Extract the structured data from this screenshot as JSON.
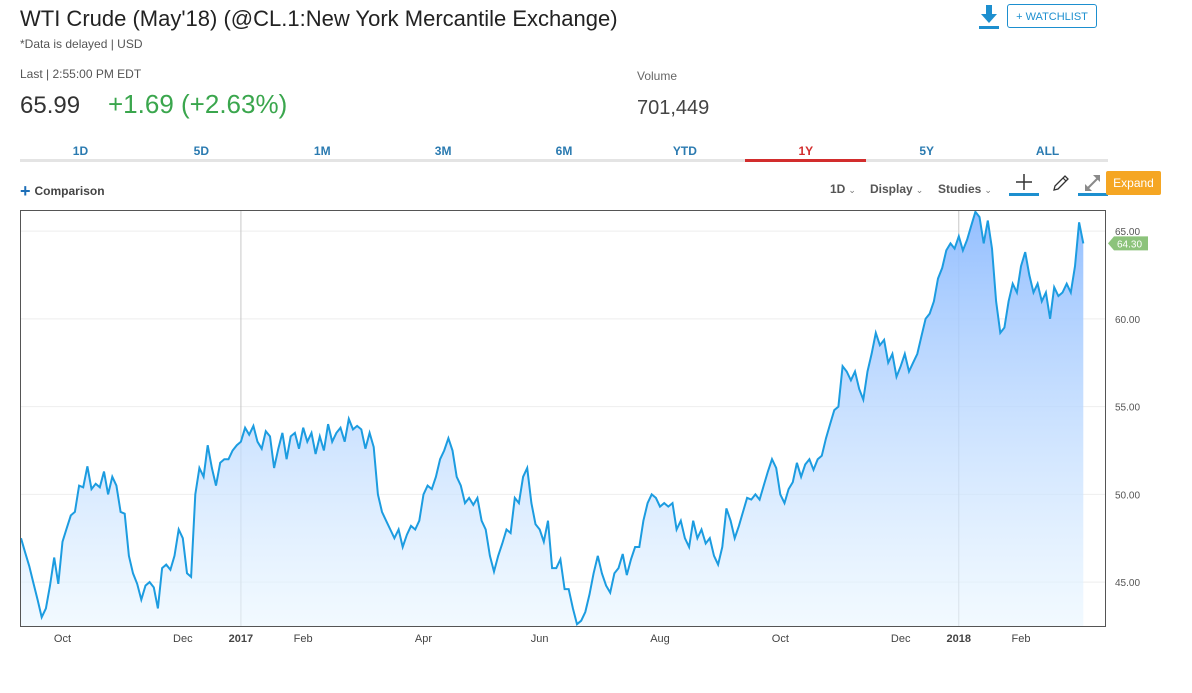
{
  "header": {
    "title": "WTI Crude (May'18) (@CL.1:New York Mercantile Exchange)",
    "subtitle": "*Data is delayed | USD",
    "watchlist_label": "+ WATCHLIST"
  },
  "quote": {
    "last_label": "Last | 2:55:00 PM EDT",
    "last_price": "65.99",
    "change": "+1.69 (+2.63%)",
    "volume_label": "Volume",
    "volume_value": "701,449"
  },
  "tabs": [
    "1D",
    "5D",
    "1M",
    "3M",
    "6M",
    "YTD",
    "1Y",
    "5Y",
    "ALL"
  ],
  "active_tab": "1Y",
  "toolbar": {
    "comparison_label": "Comparison",
    "interval_label": "1D",
    "display_label": "Display",
    "studies_label": "Studies",
    "expand_label": "Expand"
  },
  "colors": {
    "accent": "#1d8fcf",
    "line": "#1c9ce0",
    "positive": "#3aa64d",
    "active_tab": "#d22d2d",
    "expand": "#f5a623",
    "last_badge": "#8cc37b"
  },
  "chart_data": {
    "type": "area",
    "title": "WTI Crude (May'18) 1Y",
    "ylim": [
      42.5,
      66.2
    ],
    "yticks": [
      "45.00",
      "50.00",
      "55.00",
      "60.00",
      "65.00"
    ],
    "yticks_values": [
      45,
      50,
      55,
      60,
      65
    ],
    "xtick_labels": [
      "Oct",
      "Dec",
      "2017",
      "Feb",
      "Apr",
      "Jun",
      "Aug",
      "Oct",
      "Dec",
      "2018",
      "Feb"
    ],
    "xtick_positions": [
      10,
      39,
      53,
      68,
      97,
      125,
      154,
      183,
      212,
      226,
      241
    ],
    "x_count": 262,
    "last_value_label": "64.30",
    "last_value": 64.3,
    "anchors": [
      [
        0,
        47.5
      ],
      [
        2,
        45.9
      ],
      [
        4,
        44.0
      ],
      [
        5,
        43.0
      ],
      [
        6,
        43.5
      ],
      [
        7,
        44.8
      ],
      [
        8,
        46.4
      ],
      [
        9,
        44.9
      ],
      [
        10,
        47.3
      ],
      [
        12,
        48.8
      ],
      [
        13,
        49.0
      ],
      [
        14,
        50.5
      ],
      [
        15,
        50.4
      ],
      [
        16,
        51.6
      ],
      [
        17,
        50.3
      ],
      [
        18,
        50.6
      ],
      [
        19,
        50.4
      ],
      [
        20,
        51.3
      ],
      [
        21,
        50.0
      ],
      [
        22,
        51.0
      ],
      [
        23,
        50.5
      ],
      [
        24,
        49.0
      ],
      [
        25,
        48.9
      ],
      [
        26,
        46.5
      ],
      [
        27,
        45.5
      ],
      [
        28,
        44.9
      ],
      [
        29,
        44.0
      ],
      [
        30,
        44.8
      ],
      [
        31,
        45.0
      ],
      [
        32,
        44.7
      ],
      [
        33,
        43.5
      ],
      [
        34,
        45.8
      ],
      [
        35,
        46.0
      ],
      [
        36,
        45.7
      ],
      [
        37,
        46.5
      ],
      [
        38,
        48.0
      ],
      [
        39,
        47.5
      ],
      [
        40,
        45.5
      ],
      [
        41,
        45.3
      ],
      [
        42,
        50.0
      ],
      [
        43,
        51.5
      ],
      [
        44,
        51.0
      ],
      [
        45,
        52.8
      ],
      [
        46,
        51.5
      ],
      [
        47,
        50.5
      ],
      [
        48,
        51.8
      ],
      [
        49,
        52.0
      ],
      [
        50,
        52.0
      ],
      [
        51,
        52.5
      ],
      [
        52,
        52.8
      ],
      [
        53,
        53.0
      ],
      [
        54,
        53.8
      ],
      [
        55,
        53.4
      ],
      [
        56,
        53.9
      ],
      [
        57,
        53.0
      ],
      [
        58,
        52.6
      ],
      [
        59,
        53.6
      ],
      [
        60,
        53.3
      ],
      [
        61,
        51.5
      ],
      [
        62,
        52.6
      ],
      [
        63,
        53.5
      ],
      [
        64,
        52.0
      ],
      [
        65,
        53.3
      ],
      [
        66,
        53.5
      ],
      [
        67,
        52.6
      ],
      [
        68,
        53.8
      ],
      [
        69,
        53.0
      ],
      [
        70,
        53.5
      ],
      [
        71,
        52.3
      ],
      [
        72,
        53.3
      ],
      [
        73,
        52.5
      ],
      [
        74,
        54.0
      ],
      [
        75,
        53.0
      ],
      [
        76,
        53.5
      ],
      [
        77,
        53.8
      ],
      [
        78,
        53.0
      ],
      [
        79,
        54.3
      ],
      [
        80,
        53.7
      ],
      [
        81,
        53.9
      ],
      [
        82,
        53.7
      ],
      [
        83,
        52.6
      ],
      [
        84,
        53.5
      ],
      [
        85,
        52.7
      ],
      [
        86,
        50.0
      ],
      [
        87,
        49.0
      ],
      [
        88,
        48.5
      ],
      [
        89,
        48.0
      ],
      [
        90,
        47.5
      ],
      [
        91,
        48.0
      ],
      [
        92,
        47.0
      ],
      [
        93,
        47.7
      ],
      [
        94,
        48.2
      ],
      [
        95,
        48.0
      ],
      [
        96,
        48.5
      ],
      [
        97,
        50.0
      ],
      [
        98,
        50.5
      ],
      [
        99,
        50.3
      ],
      [
        100,
        51.0
      ],
      [
        101,
        52.0
      ],
      [
        102,
        52.5
      ],
      [
        103,
        53.2
      ],
      [
        104,
        52.5
      ],
      [
        105,
        51.0
      ],
      [
        106,
        50.5
      ],
      [
        107,
        49.5
      ],
      [
        108,
        49.8
      ],
      [
        109,
        49.4
      ],
      [
        110,
        49.8
      ],
      [
        111,
        48.5
      ],
      [
        112,
        48.0
      ],
      [
        113,
        46.5
      ],
      [
        114,
        45.6
      ],
      [
        115,
        46.5
      ],
      [
        116,
        47.2
      ],
      [
        117,
        48.0
      ],
      [
        118,
        47.8
      ],
      [
        119,
        49.8
      ],
      [
        120,
        49.5
      ],
      [
        121,
        51.0
      ],
      [
        122,
        51.5
      ],
      [
        123,
        49.5
      ],
      [
        124,
        48.3
      ],
      [
        125,
        48.0
      ],
      [
        126,
        47.3
      ],
      [
        127,
        48.5
      ],
      [
        128,
        45.8
      ],
      [
        129,
        45.8
      ],
      [
        130,
        46.3
      ],
      [
        131,
        44.6
      ],
      [
        132,
        44.6
      ],
      [
        133,
        43.5
      ],
      [
        134,
        42.6
      ],
      [
        135,
        42.8
      ],
      [
        136,
        43.3
      ],
      [
        137,
        44.3
      ],
      [
        138,
        45.5
      ],
      [
        139,
        46.5
      ],
      [
        140,
        45.5
      ],
      [
        141,
        44.8
      ],
      [
        142,
        44.4
      ],
      [
        143,
        45.5
      ],
      [
        144,
        45.8
      ],
      [
        145,
        46.6
      ],
      [
        146,
        45.4
      ],
      [
        147,
        46.3
      ],
      [
        148,
        47.0
      ],
      [
        149,
        47.0
      ],
      [
        150,
        48.5
      ],
      [
        151,
        49.5
      ],
      [
        152,
        50.0
      ],
      [
        153,
        49.8
      ],
      [
        154,
        49.3
      ],
      [
        155,
        49.5
      ],
      [
        156,
        49.3
      ],
      [
        157,
        49.5
      ],
      [
        158,
        48.0
      ],
      [
        159,
        48.5
      ],
      [
        160,
        47.5
      ],
      [
        161,
        47.0
      ],
      [
        162,
        48.5
      ],
      [
        163,
        47.5
      ],
      [
        164,
        48.0
      ],
      [
        165,
        47.2
      ],
      [
        166,
        47.5
      ],
      [
        167,
        46.5
      ],
      [
        168,
        46.0
      ],
      [
        169,
        47.0
      ],
      [
        170,
        49.2
      ],
      [
        171,
        48.5
      ],
      [
        172,
        47.5
      ],
      [
        173,
        48.2
      ],
      [
        174,
        49.0
      ],
      [
        175,
        49.8
      ],
      [
        176,
        49.7
      ],
      [
        177,
        50.0
      ],
      [
        178,
        49.7
      ],
      [
        179,
        50.5
      ],
      [
        180,
        51.3
      ],
      [
        181,
        52.0
      ],
      [
        182,
        51.5
      ],
      [
        183,
        50.0
      ],
      [
        184,
        49.5
      ],
      [
        185,
        50.3
      ],
      [
        186,
        50.7
      ],
      [
        187,
        51.8
      ],
      [
        188,
        51.0
      ],
      [
        189,
        51.7
      ],
      [
        190,
        52.0
      ],
      [
        191,
        51.4
      ],
      [
        192,
        52.0
      ],
      [
        193,
        52.2
      ],
      [
        194,
        53.2
      ],
      [
        195,
        54.0
      ],
      [
        196,
        54.8
      ],
      [
        197,
        55.0
      ],
      [
        198,
        57.3
      ],
      [
        199,
        57.0
      ],
      [
        200,
        56.5
      ],
      [
        201,
        57.0
      ],
      [
        202,
        56.0
      ],
      [
        203,
        55.4
      ],
      [
        204,
        57.0
      ],
      [
        205,
        58.0
      ],
      [
        206,
        59.2
      ],
      [
        207,
        58.5
      ],
      [
        208,
        58.8
      ],
      [
        209,
        57.5
      ],
      [
        210,
        58.0
      ],
      [
        211,
        56.7
      ],
      [
        212,
        57.3
      ],
      [
        213,
        58.0
      ],
      [
        214,
        57.0
      ],
      [
        215,
        57.5
      ],
      [
        216,
        58.0
      ],
      [
        217,
        59.0
      ],
      [
        218,
        60.0
      ],
      [
        219,
        60.3
      ],
      [
        220,
        61.0
      ],
      [
        221,
        62.3
      ],
      [
        222,
        62.9
      ],
      [
        223,
        63.9
      ],
      [
        224,
        64.3
      ],
      [
        225,
        64.0
      ],
      [
        226,
        64.7
      ],
      [
        227,
        63.9
      ],
      [
        228,
        64.5
      ],
      [
        229,
        65.3
      ],
      [
        230,
        66.1
      ],
      [
        231,
        65.8
      ],
      [
        232,
        64.3
      ],
      [
        233,
        65.6
      ],
      [
        234,
        64.0
      ],
      [
        235,
        61.0
      ],
      [
        236,
        59.2
      ],
      [
        237,
        59.5
      ],
      [
        238,
        61.0
      ],
      [
        239,
        62.0
      ],
      [
        240,
        61.5
      ],
      [
        241,
        63.0
      ],
      [
        242,
        63.8
      ],
      [
        243,
        62.5
      ],
      [
        244,
        61.5
      ],
      [
        245,
        62.0
      ],
      [
        246,
        61.0
      ],
      [
        247,
        61.5
      ],
      [
        248,
        60.0
      ],
      [
        249,
        61.8
      ],
      [
        250,
        61.3
      ],
      [
        251,
        61.5
      ],
      [
        252,
        62.0
      ],
      [
        253,
        61.5
      ],
      [
        254,
        63.0
      ],
      [
        255,
        65.5
      ],
      [
        256,
        64.3
      ]
    ]
  }
}
